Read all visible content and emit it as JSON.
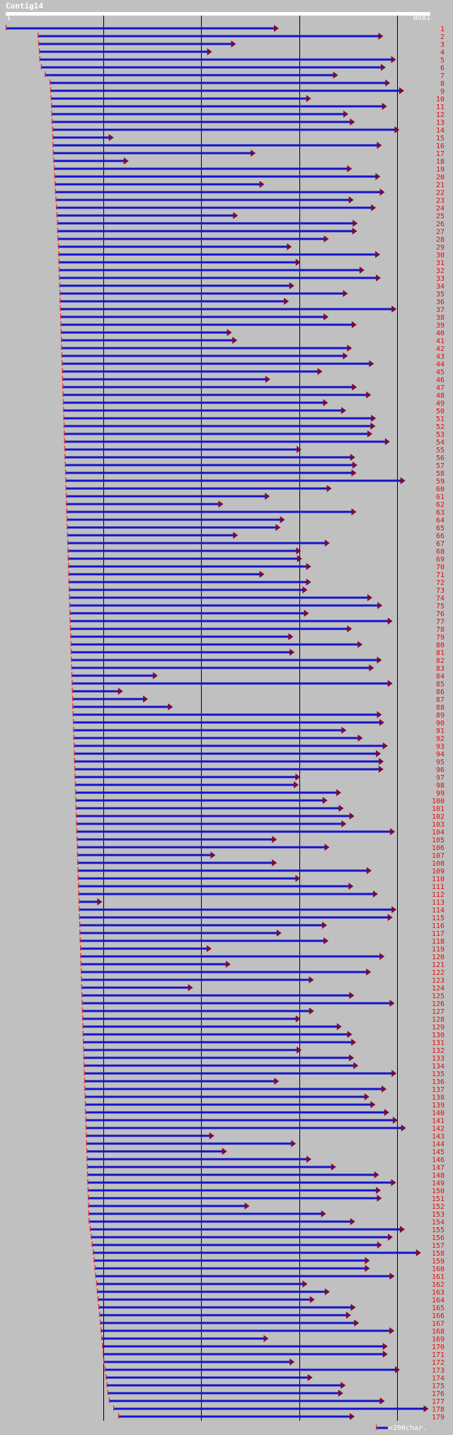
{
  "title": "Contig14",
  "ruler": {
    "start_label": "1",
    "end_label": "8681",
    "start": 1,
    "end": 8681,
    "gridlines": [
      2000,
      4000,
      6000,
      8000
    ]
  },
  "legend": {
    "text": "=200char."
  },
  "colors": {
    "read_line": "#1414cc",
    "arrow_head": "#7a0a3c",
    "read_start_tick": "#e8332a",
    "row_label": "#dd1010",
    "gridline": "#000000",
    "background": "#c0c0c0"
  },
  "chart_data": {
    "type": "read-alignment",
    "contig": "Contig14",
    "length": 8681,
    "x_range": [
      1,
      8681
    ],
    "reads": [
      {
        "label": "1",
        "start": 1,
        "end": 5585
      },
      {
        "label": "2",
        "start": 655,
        "end": 7720
      },
      {
        "label": "3",
        "start": 665,
        "end": 4710
      },
      {
        "label": "4",
        "start": 680,
        "end": 4220
      },
      {
        "label": "5",
        "start": 690,
        "end": 7980
      },
      {
        "label": "6",
        "start": 720,
        "end": 7770
      },
      {
        "label": "7",
        "start": 800,
        "end": 6795
      },
      {
        "label": "8",
        "start": 900,
        "end": 7860
      },
      {
        "label": "9",
        "start": 910,
        "end": 8145
      },
      {
        "label": "10",
        "start": 920,
        "end": 6245
      },
      {
        "label": "11",
        "start": 930,
        "end": 7795
      },
      {
        "label": "12",
        "start": 935,
        "end": 7005
      },
      {
        "label": "13",
        "start": 940,
        "end": 7140
      },
      {
        "label": "14",
        "start": 950,
        "end": 8050
      },
      {
        "label": "15",
        "start": 955,
        "end": 2210
      },
      {
        "label": "16",
        "start": 960,
        "end": 7690
      },
      {
        "label": "17",
        "start": 965,
        "end": 5110
      },
      {
        "label": "18",
        "start": 975,
        "end": 2515
      },
      {
        "label": "19",
        "start": 985,
        "end": 7080
      },
      {
        "label": "20",
        "start": 995,
        "end": 7660
      },
      {
        "label": "21",
        "start": 1000,
        "end": 5290
      },
      {
        "label": "22",
        "start": 1010,
        "end": 7750
      },
      {
        "label": "23",
        "start": 1020,
        "end": 7115
      },
      {
        "label": "24",
        "start": 1030,
        "end": 7570
      },
      {
        "label": "25",
        "start": 1040,
        "end": 4750
      },
      {
        "label": "26",
        "start": 1050,
        "end": 7195
      },
      {
        "label": "27",
        "start": 1055,
        "end": 7185
      },
      {
        "label": "28",
        "start": 1060,
        "end": 6605
      },
      {
        "label": "29",
        "start": 1070,
        "end": 5850
      },
      {
        "label": "30",
        "start": 1075,
        "end": 7655
      },
      {
        "label": "31",
        "start": 1080,
        "end": 6030
      },
      {
        "label": "32",
        "start": 1085,
        "end": 7335
      },
      {
        "label": "33",
        "start": 1090,
        "end": 7670
      },
      {
        "label": "34",
        "start": 1095,
        "end": 5900
      },
      {
        "label": "35",
        "start": 1100,
        "end": 6995
      },
      {
        "label": "36",
        "start": 1105,
        "end": 5790
      },
      {
        "label": "37",
        "start": 1110,
        "end": 7990
      },
      {
        "label": "38",
        "start": 1115,
        "end": 6600
      },
      {
        "label": "39",
        "start": 1120,
        "end": 7175
      },
      {
        "label": "40",
        "start": 1125,
        "end": 4625
      },
      {
        "label": "41",
        "start": 1130,
        "end": 4735
      },
      {
        "label": "42",
        "start": 1135,
        "end": 7080
      },
      {
        "label": "43",
        "start": 1140,
        "end": 6995
      },
      {
        "label": "44",
        "start": 1145,
        "end": 7530
      },
      {
        "label": "45",
        "start": 1150,
        "end": 6475
      },
      {
        "label": "46",
        "start": 1155,
        "end": 5410
      },
      {
        "label": "47",
        "start": 1160,
        "end": 7180
      },
      {
        "label": "48",
        "start": 1165,
        "end": 7470
      },
      {
        "label": "49",
        "start": 1170,
        "end": 6590
      },
      {
        "label": "50",
        "start": 1175,
        "end": 6960
      },
      {
        "label": "51",
        "start": 1180,
        "end": 7570
      },
      {
        "label": "52",
        "start": 1185,
        "end": 7560
      },
      {
        "label": "53",
        "start": 1190,
        "end": 7495
      },
      {
        "label": "54",
        "start": 1195,
        "end": 7855
      },
      {
        "label": "55",
        "start": 1200,
        "end": 6050
      },
      {
        "label": "56",
        "start": 1205,
        "end": 7145
      },
      {
        "label": "57",
        "start": 1210,
        "end": 7190
      },
      {
        "label": "58",
        "start": 1215,
        "end": 7170
      },
      {
        "label": "59",
        "start": 1220,
        "end": 8170
      },
      {
        "label": "60",
        "start": 1225,
        "end": 6665
      },
      {
        "label": "61",
        "start": 1230,
        "end": 5400
      },
      {
        "label": "62",
        "start": 1235,
        "end": 4450
      },
      {
        "label": "63",
        "start": 1240,
        "end": 7170
      },
      {
        "label": "64",
        "start": 1245,
        "end": 5710
      },
      {
        "label": "65",
        "start": 1250,
        "end": 5620
      },
      {
        "label": "66",
        "start": 1255,
        "end": 4750
      },
      {
        "label": "67",
        "start": 1260,
        "end": 6625
      },
      {
        "label": "68",
        "start": 1265,
        "end": 6040
      },
      {
        "label": "69",
        "start": 1270,
        "end": 6060
      },
      {
        "label": "70",
        "start": 1275,
        "end": 6245
      },
      {
        "label": "71",
        "start": 1280,
        "end": 5290
      },
      {
        "label": "72",
        "start": 1285,
        "end": 6245
      },
      {
        "label": "73",
        "start": 1290,
        "end": 6170
      },
      {
        "label": "74",
        "start": 1295,
        "end": 7495
      },
      {
        "label": "75",
        "start": 1300,
        "end": 7700
      },
      {
        "label": "76",
        "start": 1305,
        "end": 6200
      },
      {
        "label": "77",
        "start": 1310,
        "end": 7910
      },
      {
        "label": "78",
        "start": 1315,
        "end": 7080
      },
      {
        "label": "79",
        "start": 1320,
        "end": 5880
      },
      {
        "label": "80",
        "start": 1325,
        "end": 7295
      },
      {
        "label": "81",
        "start": 1330,
        "end": 5905
      },
      {
        "label": "82",
        "start": 1335,
        "end": 7690
      },
      {
        "label": "83",
        "start": 1340,
        "end": 7530
      },
      {
        "label": "84",
        "start": 1345,
        "end": 3110
      },
      {
        "label": "85",
        "start": 1350,
        "end": 7910
      },
      {
        "label": "86",
        "start": 1355,
        "end": 2400
      },
      {
        "label": "87",
        "start": 1360,
        "end": 2910
      },
      {
        "label": "88",
        "start": 1365,
        "end": 3420
      },
      {
        "label": "89",
        "start": 1370,
        "end": 7690
      },
      {
        "label": "90",
        "start": 1375,
        "end": 7740
      },
      {
        "label": "91",
        "start": 1380,
        "end": 6965
      },
      {
        "label": "92",
        "start": 1385,
        "end": 7300
      },
      {
        "label": "93",
        "start": 1390,
        "end": 7810
      },
      {
        "label": "94",
        "start": 1395,
        "end": 7670
      },
      {
        "label": "95",
        "start": 1400,
        "end": 7730
      },
      {
        "label": "96",
        "start": 1405,
        "end": 7725
      },
      {
        "label": "97",
        "start": 1410,
        "end": 6025
      },
      {
        "label": "98",
        "start": 1415,
        "end": 5990
      },
      {
        "label": "99",
        "start": 1420,
        "end": 6860
      },
      {
        "label": "100",
        "start": 1425,
        "end": 6580
      },
      {
        "label": "101",
        "start": 1430,
        "end": 6910
      },
      {
        "label": "102",
        "start": 1435,
        "end": 7130
      },
      {
        "label": "103",
        "start": 1440,
        "end": 6965
      },
      {
        "label": "104",
        "start": 1445,
        "end": 7960
      },
      {
        "label": "105",
        "start": 1450,
        "end": 5545
      },
      {
        "label": "106",
        "start": 1455,
        "end": 6620
      },
      {
        "label": "107",
        "start": 1460,
        "end": 4290
      },
      {
        "label": "108",
        "start": 1465,
        "end": 5545
      },
      {
        "label": "109",
        "start": 1470,
        "end": 7480
      },
      {
        "label": "110",
        "start": 1475,
        "end": 6025
      },
      {
        "label": "111",
        "start": 1480,
        "end": 7110
      },
      {
        "label": "112",
        "start": 1485,
        "end": 7610
      },
      {
        "label": "113",
        "start": 1490,
        "end": 1975
      },
      {
        "label": "114",
        "start": 1495,
        "end": 7990
      },
      {
        "label": "115",
        "start": 1500,
        "end": 7910
      },
      {
        "label": "116",
        "start": 1505,
        "end": 6570
      },
      {
        "label": "117",
        "start": 1510,
        "end": 5640
      },
      {
        "label": "118",
        "start": 1515,
        "end": 6600
      },
      {
        "label": "119",
        "start": 1520,
        "end": 4210
      },
      {
        "label": "120",
        "start": 1525,
        "end": 7745
      },
      {
        "label": "121",
        "start": 1530,
        "end": 4600
      },
      {
        "label": "122",
        "start": 1535,
        "end": 7470
      },
      {
        "label": "123",
        "start": 1540,
        "end": 6300
      },
      {
        "label": "124",
        "start": 1545,
        "end": 3830
      },
      {
        "label": "125",
        "start": 1550,
        "end": 7125
      },
      {
        "label": "126",
        "start": 1555,
        "end": 7950
      },
      {
        "label": "127",
        "start": 1560,
        "end": 6305
      },
      {
        "label": "128",
        "start": 1565,
        "end": 6030
      },
      {
        "label": "129",
        "start": 1570,
        "end": 6870
      },
      {
        "label": "130",
        "start": 1575,
        "end": 7085
      },
      {
        "label": "131",
        "start": 1580,
        "end": 7165
      },
      {
        "label": "132",
        "start": 1585,
        "end": 6050
      },
      {
        "label": "133",
        "start": 1590,
        "end": 7120
      },
      {
        "label": "134",
        "start": 1595,
        "end": 7210
      },
      {
        "label": "135",
        "start": 1600,
        "end": 7990
      },
      {
        "label": "136",
        "start": 1605,
        "end": 5590
      },
      {
        "label": "137",
        "start": 1610,
        "end": 7785
      },
      {
        "label": "138",
        "start": 1615,
        "end": 7435
      },
      {
        "label": "139",
        "start": 1620,
        "end": 7560
      },
      {
        "label": "140",
        "start": 1625,
        "end": 7840
      },
      {
        "label": "141",
        "start": 1630,
        "end": 8015
      },
      {
        "label": "142",
        "start": 1635,
        "end": 8185
      },
      {
        "label": "143",
        "start": 1640,
        "end": 4265
      },
      {
        "label": "144",
        "start": 1645,
        "end": 5935
      },
      {
        "label": "145",
        "start": 1650,
        "end": 4525
      },
      {
        "label": "146",
        "start": 1655,
        "end": 6250
      },
      {
        "label": "147",
        "start": 1660,
        "end": 6755
      },
      {
        "label": "148",
        "start": 1665,
        "end": 7635
      },
      {
        "label": "149",
        "start": 1670,
        "end": 7980
      },
      {
        "label": "150",
        "start": 1675,
        "end": 7670
      },
      {
        "label": "151",
        "start": 1680,
        "end": 7690
      },
      {
        "label": "152",
        "start": 1685,
        "end": 4985
      },
      {
        "label": "153",
        "start": 1690,
        "end": 6550
      },
      {
        "label": "154",
        "start": 1695,
        "end": 7145
      },
      {
        "label": "155",
        "start": 1720,
        "end": 8160
      },
      {
        "label": "156",
        "start": 1740,
        "end": 7915
      },
      {
        "label": "157",
        "start": 1760,
        "end": 7695
      },
      {
        "label": "158",
        "start": 1780,
        "end": 8490
      },
      {
        "label": "159",
        "start": 1800,
        "end": 7445
      },
      {
        "label": "160",
        "start": 1815,
        "end": 7445
      },
      {
        "label": "161",
        "start": 1830,
        "end": 7950
      },
      {
        "label": "162",
        "start": 1850,
        "end": 6170
      },
      {
        "label": "163",
        "start": 1865,
        "end": 6625
      },
      {
        "label": "164",
        "start": 1880,
        "end": 6320
      },
      {
        "label": "165",
        "start": 1895,
        "end": 7155
      },
      {
        "label": "166",
        "start": 1910,
        "end": 7060
      },
      {
        "label": "167",
        "start": 1925,
        "end": 7225
      },
      {
        "label": "168",
        "start": 1940,
        "end": 7945
      },
      {
        "label": "169",
        "start": 1955,
        "end": 5375
      },
      {
        "label": "170",
        "start": 1970,
        "end": 7810
      },
      {
        "label": "171",
        "start": 1985,
        "end": 7810
      },
      {
        "label": "172",
        "start": 2000,
        "end": 5905
      },
      {
        "label": "173",
        "start": 2020,
        "end": 8060
      },
      {
        "label": "174",
        "start": 2040,
        "end": 6275
      },
      {
        "label": "175",
        "start": 2060,
        "end": 6950
      },
      {
        "label": "176",
        "start": 2080,
        "end": 6900
      },
      {
        "label": "177",
        "start": 2110,
        "end": 7750
      },
      {
        "label": "178",
        "start": 2200,
        "end": 8645
      },
      {
        "label": "179",
        "start": 2300,
        "end": 7135
      }
    ]
  }
}
